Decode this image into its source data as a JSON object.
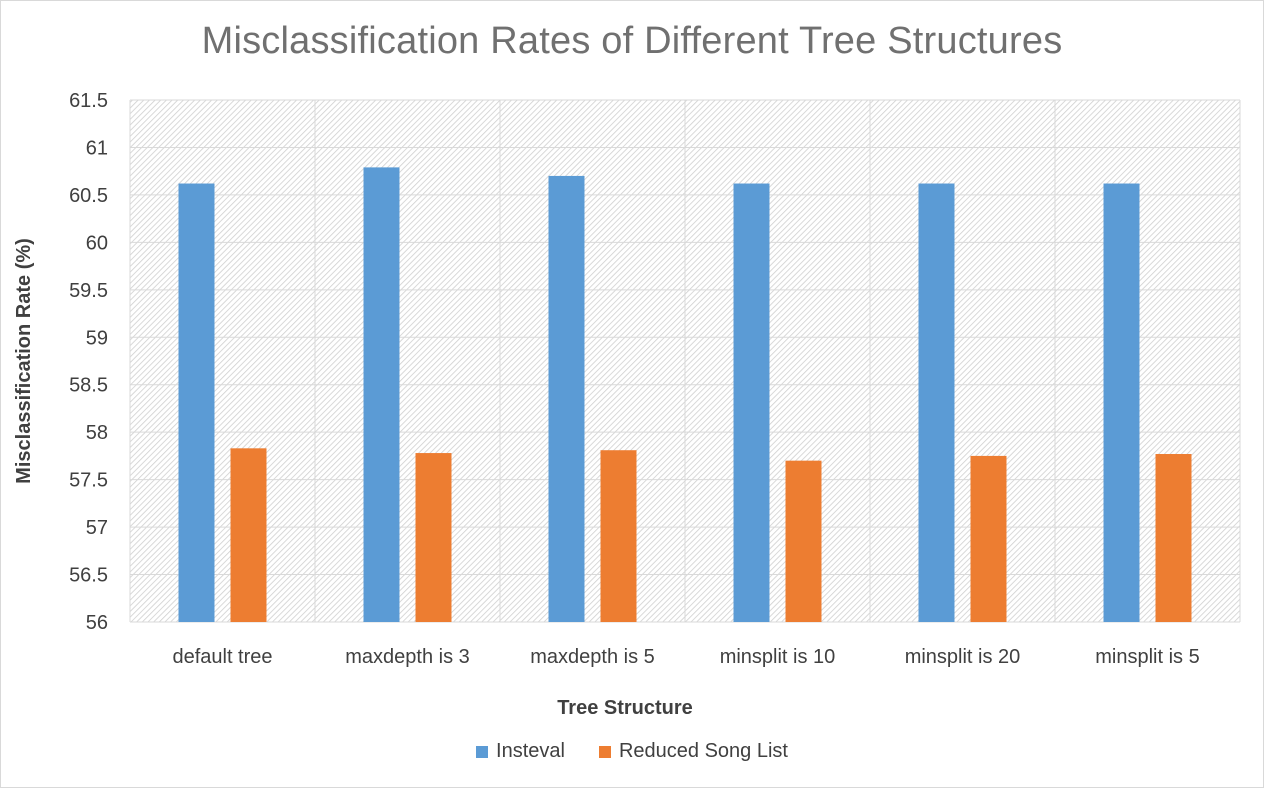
{
  "chart_data": {
    "type": "bar",
    "title": "Misclassification Rates of Different Tree Structures",
    "xlabel": "Tree Structure",
    "ylabel": "Misclassification Rate (%)",
    "ylim": [
      56,
      61.5
    ],
    "ytick_step": 0.5,
    "yticks": [
      "56",
      "56.5",
      "57",
      "57.5",
      "58",
      "58.5",
      "59",
      "59.5",
      "60",
      "60.5",
      "61",
      "61.5"
    ],
    "grid": true,
    "legend_position": "bottom",
    "categories": [
      "default tree",
      "maxdepth is 3",
      "maxdepth is 5",
      "minsplit is 10",
      "minsplit is 20",
      "minsplit is 5"
    ],
    "series": [
      {
        "name": "Insteval",
        "color": "#5B9BD5",
        "values": [
          60.62,
          60.79,
          60.7,
          60.62,
          60.62,
          60.62
        ]
      },
      {
        "name": "Reduced Song List",
        "color": "#ED7D31",
        "values": [
          57.83,
          57.78,
          57.81,
          57.7,
          57.75,
          57.77
        ]
      }
    ]
  }
}
